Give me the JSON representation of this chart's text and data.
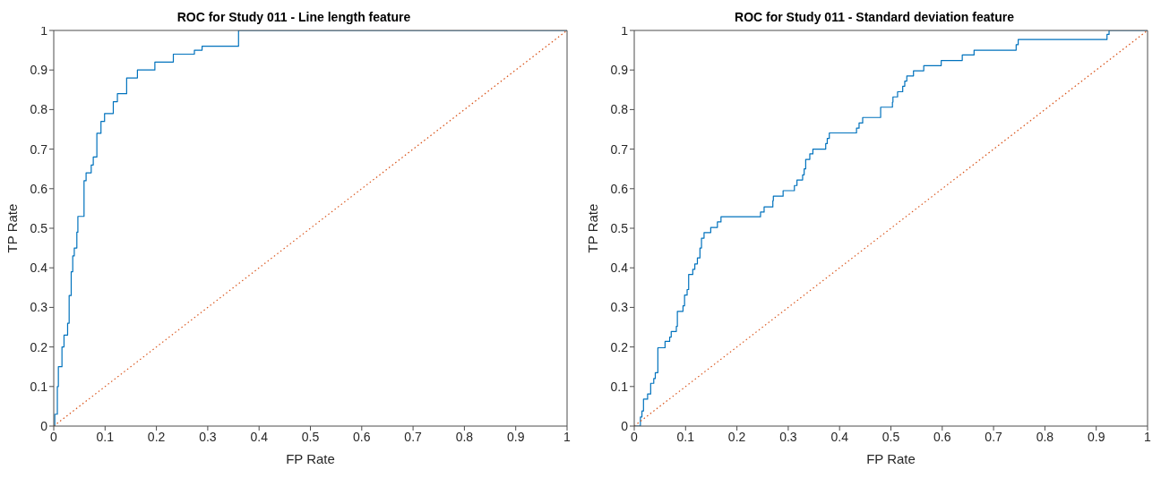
{
  "chart_data": [
    {
      "type": "step",
      "title": "ROC for Study 011 - Line length feature",
      "xlabel": "FP Rate",
      "ylabel": "TP Rate",
      "xlim": [
        0,
        1
      ],
      "ylim": [
        0,
        1
      ],
      "xticks": [
        0,
        0.1,
        0.2,
        0.3,
        0.4,
        0.5,
        0.6,
        0.7,
        0.8,
        0.9,
        1
      ],
      "yticks": [
        0,
        0.1,
        0.2,
        0.3,
        0.4,
        0.5,
        0.6,
        0.7,
        0.8,
        0.9,
        1
      ],
      "series": [
        {
          "type": "step",
          "color": "#0072bd",
          "x": [
            0,
            0.002,
            0.007,
            0.009,
            0.016,
            0.02,
            0.027,
            0.03,
            0.034,
            0.037,
            0.04,
            0.045,
            0.047,
            0.059,
            0.063,
            0.073,
            0.077,
            0.084,
            0.092,
            0.099,
            0.116,
            0.124,
            0.142,
            0.163,
            0.197,
            0.233,
            0.274,
            0.289,
            0.36,
            1
          ],
          "values": [
            0,
            0.03,
            0.1,
            0.15,
            0.2,
            0.23,
            0.26,
            0.33,
            0.39,
            0.43,
            0.45,
            0.49,
            0.53,
            0.62,
            0.64,
            0.66,
            0.68,
            0.74,
            0.77,
            0.79,
            0.82,
            0.84,
            0.88,
            0.9,
            0.92,
            0.94,
            0.95,
            0.96,
            1,
            1
          ]
        },
        {
          "type": "line",
          "color": "#d95319",
          "line_style": "dotted",
          "x": [
            0,
            1
          ],
          "values": [
            0,
            1
          ]
        }
      ]
    },
    {
      "type": "step",
      "title": "ROC for Study 011 - Standard deviation feature",
      "xlabel": "FP Rate",
      "ylabel": "TP Rate",
      "xlim": [
        0,
        1
      ],
      "ylim": [
        0,
        1
      ],
      "xticks": [
        0,
        0.1,
        0.2,
        0.3,
        0.4,
        0.5,
        0.6,
        0.7,
        0.8,
        0.9,
        1
      ],
      "yticks": [
        0,
        0.1,
        0.2,
        0.3,
        0.4,
        0.5,
        0.6,
        0.7,
        0.8,
        0.9,
        1
      ],
      "series": [
        {
          "type": "step",
          "color": "#0072bd",
          "x": [
            0,
            0.012,
            0.015,
            0.018,
            0.026,
            0.032,
            0.038,
            0.041,
            0.046,
            0.06,
            0.069,
            0.072,
            0.082,
            0.084,
            0.095,
            0.098,
            0.103,
            0.106,
            0.114,
            0.118,
            0.123,
            0.128,
            0.131,
            0.136,
            0.149,
            0.162,
            0.169,
            0.246,
            0.253,
            0.27,
            0.271,
            0.29,
            0.312,
            0.317,
            0.328,
            0.331,
            0.334,
            0.342,
            0.348,
            0.373,
            0.376,
            0.38,
            0.433,
            0.438,
            0.445,
            0.48,
            0.503,
            0.504,
            0.513,
            0.523,
            0.527,
            0.531,
            0.544,
            0.564,
            0.598,
            0.639,
            0.662,
            0.744,
            0.748,
            0.921,
            0.925,
            1
          ],
          "values": [
            0,
            0.023,
            0.038,
            0.068,
            0.081,
            0.108,
            0.12,
            0.135,
            0.198,
            0.214,
            0.225,
            0.239,
            0.252,
            0.29,
            0.304,
            0.331,
            0.345,
            0.383,
            0.396,
            0.41,
            0.425,
            0.45,
            0.475,
            0.489,
            0.502,
            0.516,
            0.529,
            0.541,
            0.554,
            0.57,
            0.581,
            0.595,
            0.608,
            0.622,
            0.635,
            0.65,
            0.674,
            0.688,
            0.7,
            0.714,
            0.727,
            0.741,
            0.753,
            0.766,
            0.78,
            0.806,
            0.819,
            0.832,
            0.845,
            0.859,
            0.872,
            0.885,
            0.898,
            0.911,
            0.924,
            0.938,
            0.95,
            0.964,
            0.977,
            0.99,
            1,
            1
          ]
        },
        {
          "type": "line",
          "color": "#d95319",
          "line_style": "dotted",
          "x": [
            0,
            1
          ],
          "values": [
            0,
            1
          ]
        }
      ]
    }
  ]
}
